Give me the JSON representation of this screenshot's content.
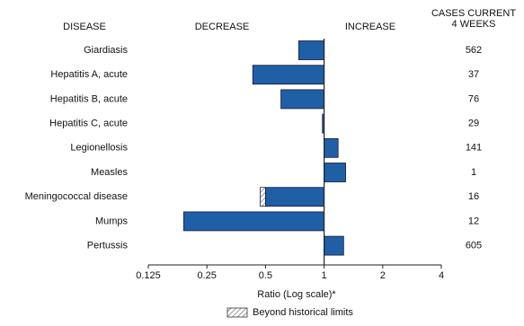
{
  "chart_data": {
    "type": "bar",
    "headers": {
      "disease": "DISEASE",
      "decrease": "DECREASE",
      "increase": "INCREASE",
      "cases": [
        "CASES CURRENT",
        "4 WEEKS"
      ]
    },
    "categories": [
      "Giardiasis",
      "Hepatitis A, acute",
      "Hepatitis B, acute",
      "Hepatitis C, acute",
      "Legionellosis",
      "Measles",
      "Meningococcal disease",
      "Mumps",
      "Pertussis"
    ],
    "values": [
      0.74,
      0.43,
      0.6,
      0.98,
      1.18,
      1.29,
      0.47,
      0.19,
      1.26
    ],
    "historical_limits": [
      null,
      null,
      null,
      null,
      null,
      null,
      0.5,
      null,
      null
    ],
    "cases": [
      562,
      37,
      76,
      29,
      141,
      1,
      16,
      12,
      605
    ],
    "color": "#1f5fa6",
    "log_scale": true,
    "xlim": [
      0.125,
      4
    ],
    "xticks": [
      0.125,
      0.25,
      0.5,
      1,
      2,
      4
    ],
    "xlabel": "Ratio (Log scale)*",
    "legend": "Beyond historical limits"
  }
}
